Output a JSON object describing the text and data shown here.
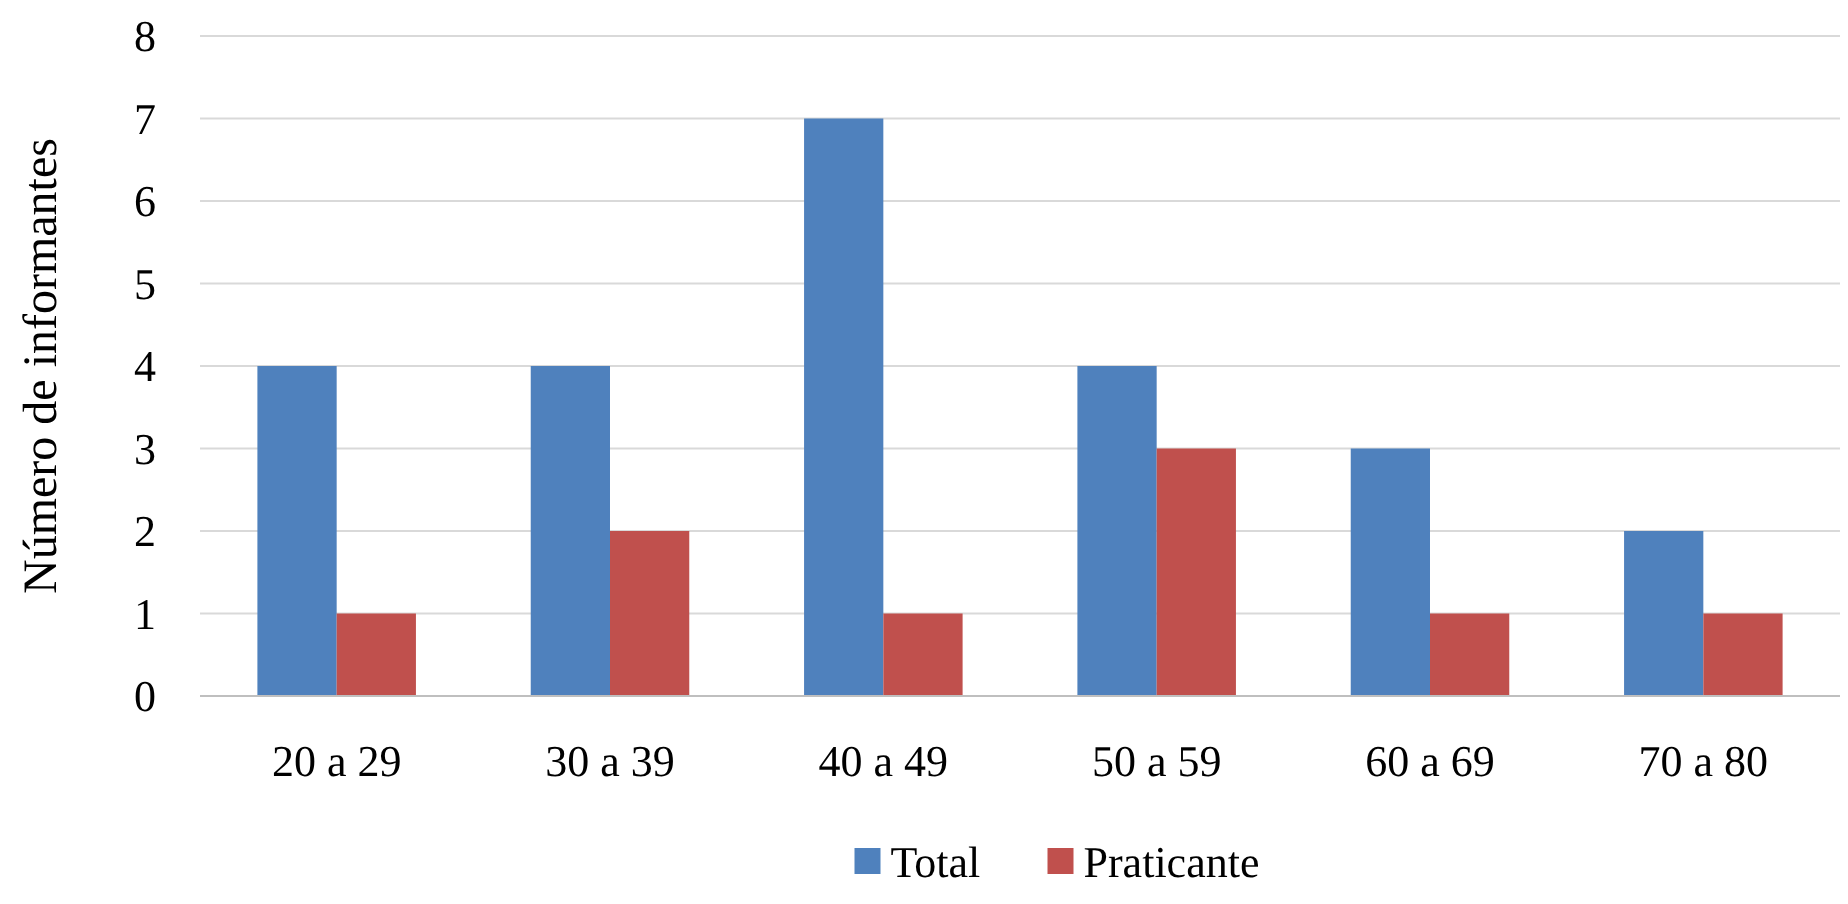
{
  "chart_data": {
    "type": "bar",
    "ylabel": "Número de informantes",
    "categories": [
      "20 a 29",
      "30 a 39",
      "40 a 49",
      "50 a 59",
      "60 a 69",
      "70 a 80"
    ],
    "series": [
      {
        "name": "Total",
        "color": "#4f81bd",
        "values": [
          4,
          4,
          7,
          4,
          3,
          2
        ]
      },
      {
        "name": "Praticante",
        "color": "#c0504d",
        "values": [
          1,
          2,
          1,
          3,
          1,
          1
        ]
      }
    ],
    "ylim": [
      0,
      8
    ],
    "yticks": [
      0,
      1,
      2,
      3,
      4,
      5,
      6,
      7,
      8
    ],
    "grid": "y",
    "legend": "bottom"
  }
}
